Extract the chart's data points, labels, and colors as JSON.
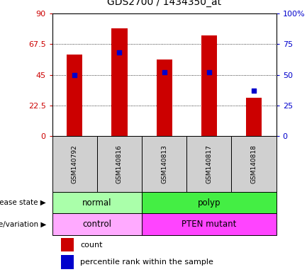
{
  "title": "GDS2700 / 1434350_at",
  "samples": [
    "GSM140792",
    "GSM140816",
    "GSM140813",
    "GSM140817",
    "GSM140818"
  ],
  "counts": [
    60,
    79,
    56,
    74,
    28
  ],
  "percentile_ranks": [
    50,
    68,
    52,
    52,
    37
  ],
  "left_ylim": [
    0,
    90
  ],
  "right_ylim": [
    0,
    100
  ],
  "left_yticks": [
    0,
    22.5,
    45,
    67.5,
    90
  ],
  "right_yticks": [
    0,
    25,
    50,
    75,
    100
  ],
  "left_yticklabels": [
    "0",
    "22.5",
    "45",
    "67.5",
    "90"
  ],
  "right_yticklabels": [
    "0",
    "25",
    "50",
    "75",
    "100%"
  ],
  "bar_color": "#cc0000",
  "dot_color": "#0000cc",
  "bar_width": 0.35,
  "disease_state_labels": [
    "normal",
    "polyp"
  ],
  "disease_state_color_normal": "#aaffaa",
  "disease_state_color_polyp": "#44ee44",
  "genotype_labels": [
    "control",
    "PTEN mutant"
  ],
  "genotype_color_control": "#ffaaff",
  "genotype_color_pten": "#ff44ff",
  "legend_count_label": "count",
  "legend_pct_label": "percentile rank within the sample",
  "annotation_disease_state": "disease state",
  "annotation_genotype": "genotype/variation",
  "plot_bg_color": "#ffffff",
  "tick_label_color_left": "#cc0000",
  "tick_label_color_right": "#0000cc",
  "sample_box_color": "#d0d0d0"
}
